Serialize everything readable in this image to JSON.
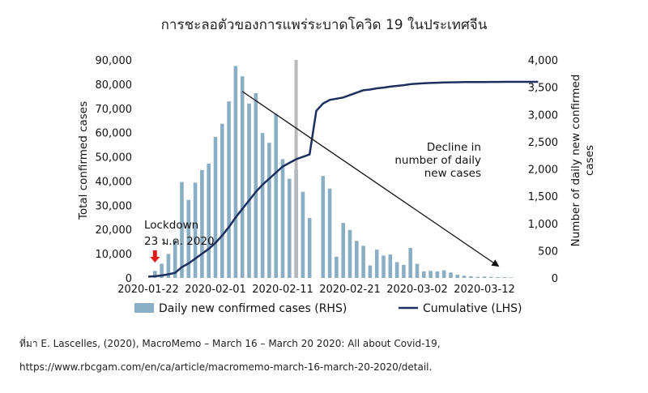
{
  "source": {
    "line1": "ที่มา E. Lascelles, (2020), MacroMemo – March 16 – March 20 2020: All about Covid-19,",
    "line2": "https://www.rbcgam.com/en/ca/article/macromemo-march-16-march-20-2020/detail."
  },
  "chart_data": {
    "type": "bar+line",
    "title": "การชะลอตัวของการแพร่ระบาดโควิด 19 ในประเทศจีน",
    "ylabel_left": "Total confirmed cases",
    "ylabel_right": "Number of daily new confirmed cases",
    "ylim_left": [
      0,
      90000
    ],
    "ylim_right": [
      0,
      4000
    ],
    "yticks_left": [
      "0",
      "10,000",
      "20,000",
      "30,000",
      "40,000",
      "50,000",
      "60,000",
      "70,000",
      "80,000",
      "90,000"
    ],
    "yticks_right": [
      "0",
      "500",
      "1,000",
      "1,500",
      "2,000",
      "2,500",
      "3,000",
      "3,500",
      "4,000"
    ],
    "xticks": [
      "2020-01-22",
      "2020-02-01",
      "2020-02-11",
      "2020-02-21",
      "2020-03-02",
      "2020-03-12"
    ],
    "start_date": "2020-01-22",
    "highlight_date": "2020-02-13",
    "series": [
      {
        "name": "Daily new confirmed cases (RHS)",
        "axis": "right",
        "type": "bar",
        "color": "#8aafc4",
        "values": [
          0,
          130,
          260,
          440,
          690,
          1760,
          1430,
          1750,
          1980,
          2100,
          2590,
          2830,
          3240,
          3890,
          3700,
          3200,
          3390,
          2660,
          2480,
          3010,
          2180,
          1820,
          1990,
          1580,
          1100,
          0,
          1870,
          1640,
          390,
          1010,
          880,
          680,
          590,
          230,
          520,
          410,
          430,
          290,
          240,
          550,
          260,
          120,
          130,
          120,
          140,
          100,
          60,
          40,
          30,
          20,
          25,
          20,
          15,
          15,
          10
        ]
      },
      {
        "name": "Cumulative (LHS)",
        "axis": "left",
        "type": "line",
        "color": "#1c2f5e",
        "values": [
          550,
          700,
          1000,
          1500,
          2100,
          4500,
          6000,
          8000,
          10000,
          12000,
          14500,
          17500,
          21000,
          25000,
          28500,
          32000,
          35500,
          38500,
          41000,
          43500,
          46000,
          47500,
          49000,
          50000,
          51000,
          69000,
          72000,
          73500,
          74000,
          74500,
          75500,
          76500,
          77500,
          77800,
          78300,
          78600,
          79000,
          79300,
          79600,
          80000,
          80200,
          80400,
          80500,
          80600,
          80700,
          80750,
          80800,
          80850,
          80870,
          80890,
          80900,
          80920,
          80940,
          80950,
          80960
        ]
      }
    ],
    "annotations": {
      "lockdown_line1": "Lockdown",
      "lockdown_line2": "23 ม.ค. 2020",
      "lockdown_date": "2020-01-23",
      "decline_line1": "Decline in",
      "decline_line2": "number of daily",
      "decline_line3": "new cases",
      "trend_arrow_from": {
        "date": "2020-02-05",
        "value_left": 77000
      },
      "trend_arrow_to": {
        "date": "2020-03-15",
        "value_left": 5000
      }
    },
    "grid": false,
    "legend": "bottom"
  }
}
